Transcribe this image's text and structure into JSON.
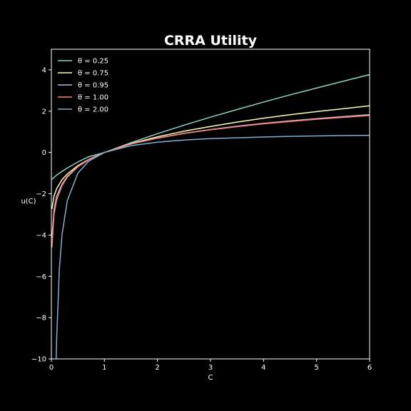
{
  "chart_data": {
    "type": "line",
    "title": "CRRA Utility",
    "xlabel": "C",
    "ylabel": "u(C)",
    "xlim": [
      0,
      6
    ],
    "ylim": [
      -10,
      5
    ],
    "xticks": [
      0,
      1,
      2,
      3,
      4,
      5,
      6
    ],
    "yticks": [
      -10,
      -8,
      -6,
      -4,
      -2,
      0,
      2,
      4
    ],
    "grid": false,
    "legend_position": "top-left",
    "background": "#000000",
    "foreground": "#ffffff",
    "series": [
      {
        "name": "θ = 0.25",
        "theta": 0.25,
        "color": "#8dd3c7",
        "x": [
          0.01,
          0.05,
          0.1,
          0.2,
          0.3,
          0.5,
          0.7,
          1,
          1.5,
          2,
          2.5,
          3,
          3.5,
          4,
          4.5,
          5,
          5.5,
          6
        ],
        "y": [
          -1.3,
          -1.21,
          -1.1,
          -0.92,
          -0.75,
          -0.46,
          -0.21,
          0.0,
          0.47,
          0.91,
          1.32,
          1.71,
          2.08,
          2.44,
          2.79,
          3.12,
          3.45,
          3.77
        ]
      },
      {
        "name": "θ = 0.75",
        "theta": 0.75,
        "color": "#feffb3",
        "x": [
          0.01,
          0.05,
          0.1,
          0.2,
          0.3,
          0.5,
          0.7,
          1,
          1.5,
          2,
          2.5,
          3,
          3.5,
          4,
          4.5,
          5,
          5.5,
          6
        ],
        "y": [
          -2.74,
          -2.11,
          -1.75,
          -1.32,
          -1.04,
          -0.64,
          -0.34,
          0.0,
          0.43,
          0.76,
          1.03,
          1.26,
          1.47,
          1.66,
          1.83,
          1.98,
          2.12,
          2.26
        ]
      },
      {
        "name": "θ = 0.95",
        "theta": 0.95,
        "color": "#bebada",
        "x": [
          0.01,
          0.05,
          0.1,
          0.2,
          0.3,
          0.5,
          0.7,
          1,
          1.5,
          2,
          2.5,
          3,
          3.5,
          4,
          4.5,
          5,
          5.5,
          6
        ],
        "y": [
          -4.13,
          -2.78,
          -2.11,
          -1.54,
          -1.15,
          -0.68,
          -0.35,
          0.0,
          0.41,
          0.7,
          0.93,
          1.11,
          1.27,
          1.41,
          1.53,
          1.64,
          1.74,
          1.83
        ]
      },
      {
        "name": "θ = 1.00",
        "theta": 1.0,
        "color": "#fa8174",
        "x": [
          0.01,
          0.05,
          0.1,
          0.2,
          0.3,
          0.5,
          0.7,
          1,
          1.5,
          2,
          2.5,
          3,
          3.5,
          4,
          4.5,
          5,
          5.5,
          6
        ],
        "y": [
          -4.61,
          -3.0,
          -2.3,
          -1.61,
          -1.2,
          -0.69,
          -0.36,
          0.0,
          0.41,
          0.69,
          0.92,
          1.1,
          1.25,
          1.39,
          1.5,
          1.61,
          1.7,
          1.79
        ]
      },
      {
        "name": "θ = 2.00",
        "theta": 2.0,
        "color": "#81b1d2",
        "x": [
          0.09,
          0.1,
          0.15,
          0.2,
          0.3,
          0.5,
          0.7,
          1,
          1.5,
          2,
          2.5,
          3,
          3.5,
          4,
          4.5,
          5,
          5.5,
          6
        ],
        "y": [
          -10.11,
          -9.0,
          -5.67,
          -4.0,
          -2.33,
          -1.0,
          -0.43,
          0.0,
          0.33,
          0.5,
          0.6,
          0.67,
          0.71,
          0.75,
          0.78,
          0.8,
          0.82,
          0.83
        ]
      }
    ]
  }
}
